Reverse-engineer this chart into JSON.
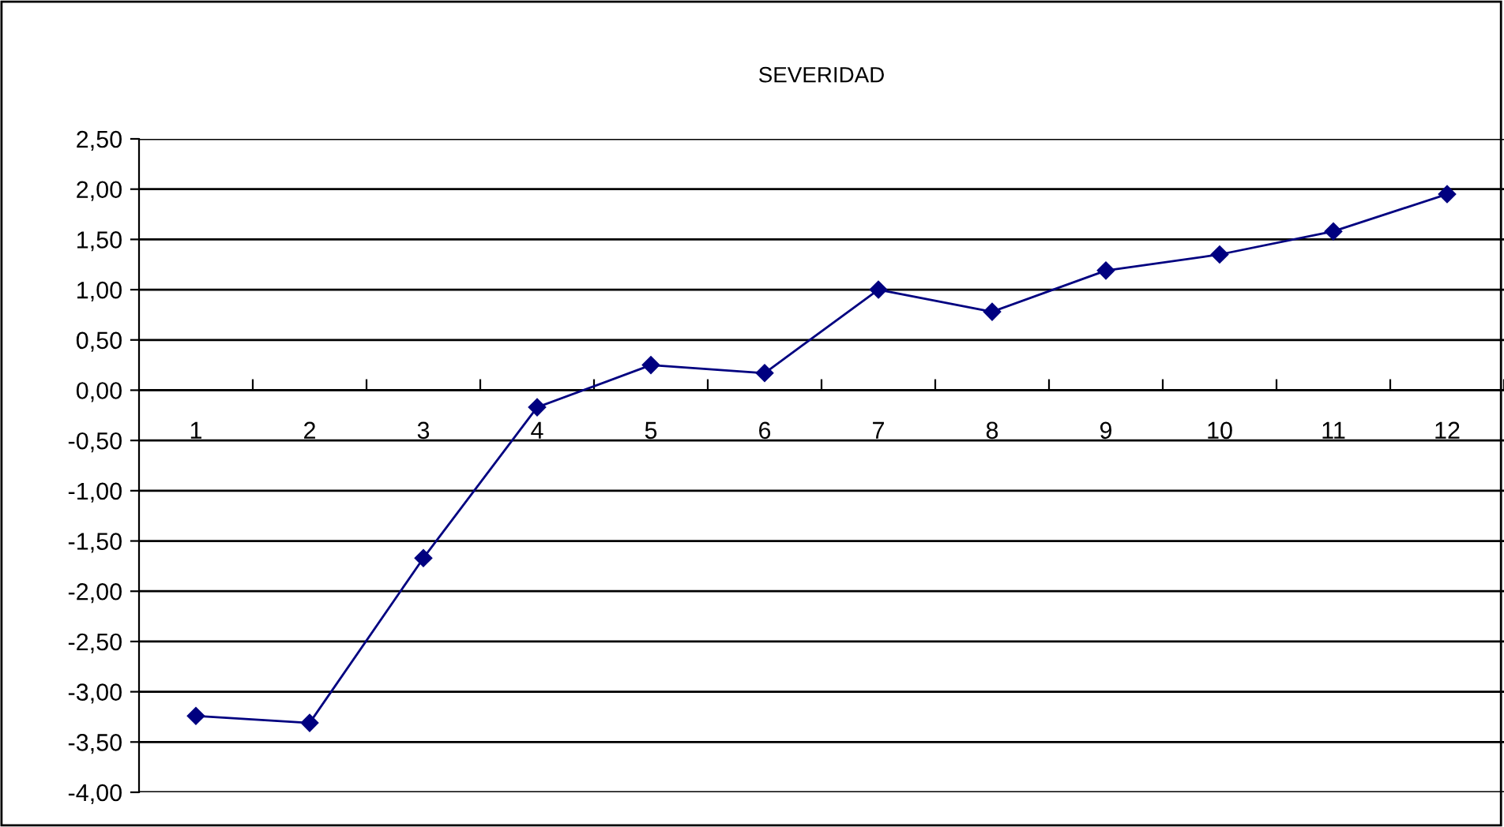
{
  "chart_data": {
    "type": "line",
    "title": "SEVERIDAD",
    "categories": [
      "1",
      "2",
      "3",
      "4",
      "5",
      "6",
      "7",
      "8",
      "9",
      "10",
      "11",
      "12"
    ],
    "series": [
      {
        "color": "#000080",
        "values": [
          -3.24,
          -3.31,
          -1.67,
          -0.17,
          0.25,
          0.17,
          1.0,
          0.78,
          1.19,
          1.35,
          1.58,
          1.95
        ]
      }
    ],
    "ylim": [
      -4,
      2.5
    ],
    "yticks": [
      {
        "value": -4,
        "label": "-4,00"
      },
      {
        "value": -3.5,
        "label": "-3,50"
      },
      {
        "value": -3,
        "label": "-3,00"
      },
      {
        "value": -2.5,
        "label": "-2,50"
      },
      {
        "value": -2,
        "label": "-2,00"
      },
      {
        "value": -1.5,
        "label": "-1,50"
      },
      {
        "value": -1,
        "label": "-1,00"
      },
      {
        "value": -0.5,
        "label": "-0,50"
      },
      {
        "value": 0,
        "label": "0,00"
      },
      {
        "value": 0.5,
        "label": "0,50"
      },
      {
        "value": 1,
        "label": "1,00"
      },
      {
        "value": 1.5,
        "label": "1,50"
      },
      {
        "value": 2,
        "label": "2,00"
      },
      {
        "value": 2.5,
        "label": "2,50"
      }
    ],
    "grid": "y",
    "marker": "diamond",
    "line_style": "solid",
    "legend": false
  }
}
